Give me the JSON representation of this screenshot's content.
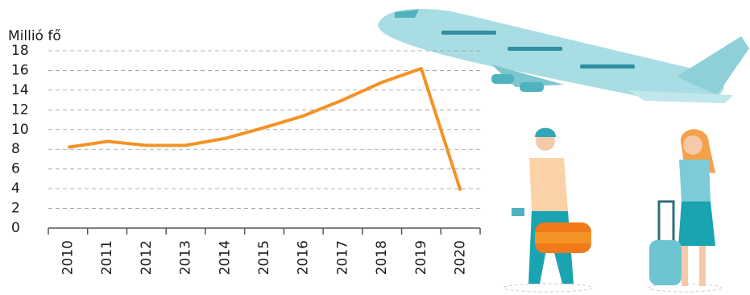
{
  "chart_data": {
    "type": "line",
    "y_label": "Millió fő",
    "categories": [
      "2010",
      "2011",
      "2012",
      "2013",
      "2014",
      "2015",
      "2016",
      "2017",
      "2018",
      "2019",
      "2020"
    ],
    "values": [
      8.2,
      8.8,
      8.4,
      8.4,
      9.1,
      10.2,
      11.4,
      13.0,
      14.8,
      16.2,
      3.8
    ],
    "color": "#f39325",
    "ylim": [
      0,
      18
    ],
    "yticks": [
      0,
      2,
      4,
      6,
      8,
      10,
      12,
      14,
      16,
      18
    ],
    "grid": true
  }
}
